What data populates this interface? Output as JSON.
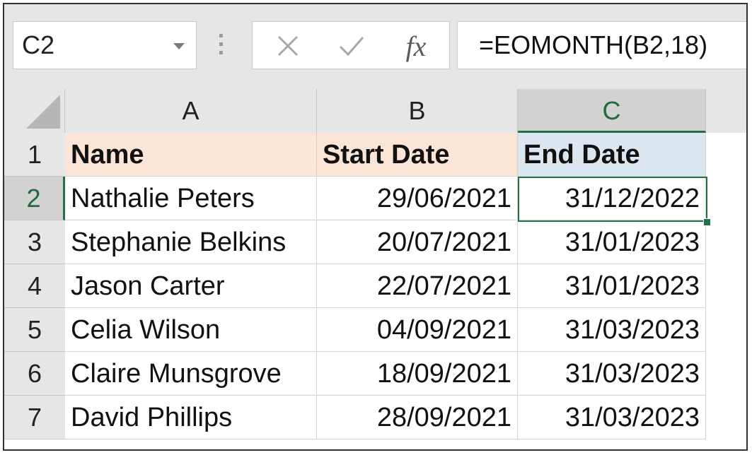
{
  "name_box": {
    "value": "C2"
  },
  "formula_bar": {
    "cancel_icon": "close-icon",
    "enter_icon": "check-icon",
    "fx_label": "fx",
    "formula": "=EOMONTH(B2,18)"
  },
  "columns": [
    "A",
    "B",
    "C"
  ],
  "rows": [
    "1",
    "2",
    "3",
    "4",
    "5",
    "6",
    "7"
  ],
  "header_row": {
    "name": "Name",
    "start": "Start Date",
    "end": "End Date"
  },
  "data_rows": [
    {
      "name": "Nathalie Peters",
      "start": "29/06/2021",
      "end": "31/12/2022"
    },
    {
      "name": "Stephanie Belkins",
      "start": "20/07/2021",
      "end": "31/01/2023"
    },
    {
      "name": "Jason Carter",
      "start": "22/07/2021",
      "end": "31/01/2023"
    },
    {
      "name": "Celia Wilson",
      "start": "04/09/2021",
      "end": "31/03/2023"
    },
    {
      "name": "Claire Munsgrove",
      "start": "18/09/2021",
      "end": "31/03/2023"
    },
    {
      "name": "David Phillips",
      "start": "28/09/2021",
      "end": "31/03/2023"
    }
  ],
  "colors": {
    "header_peach": "#fbe5d6",
    "header_blue": "#dce6f1",
    "selection_green": "#217346"
  }
}
